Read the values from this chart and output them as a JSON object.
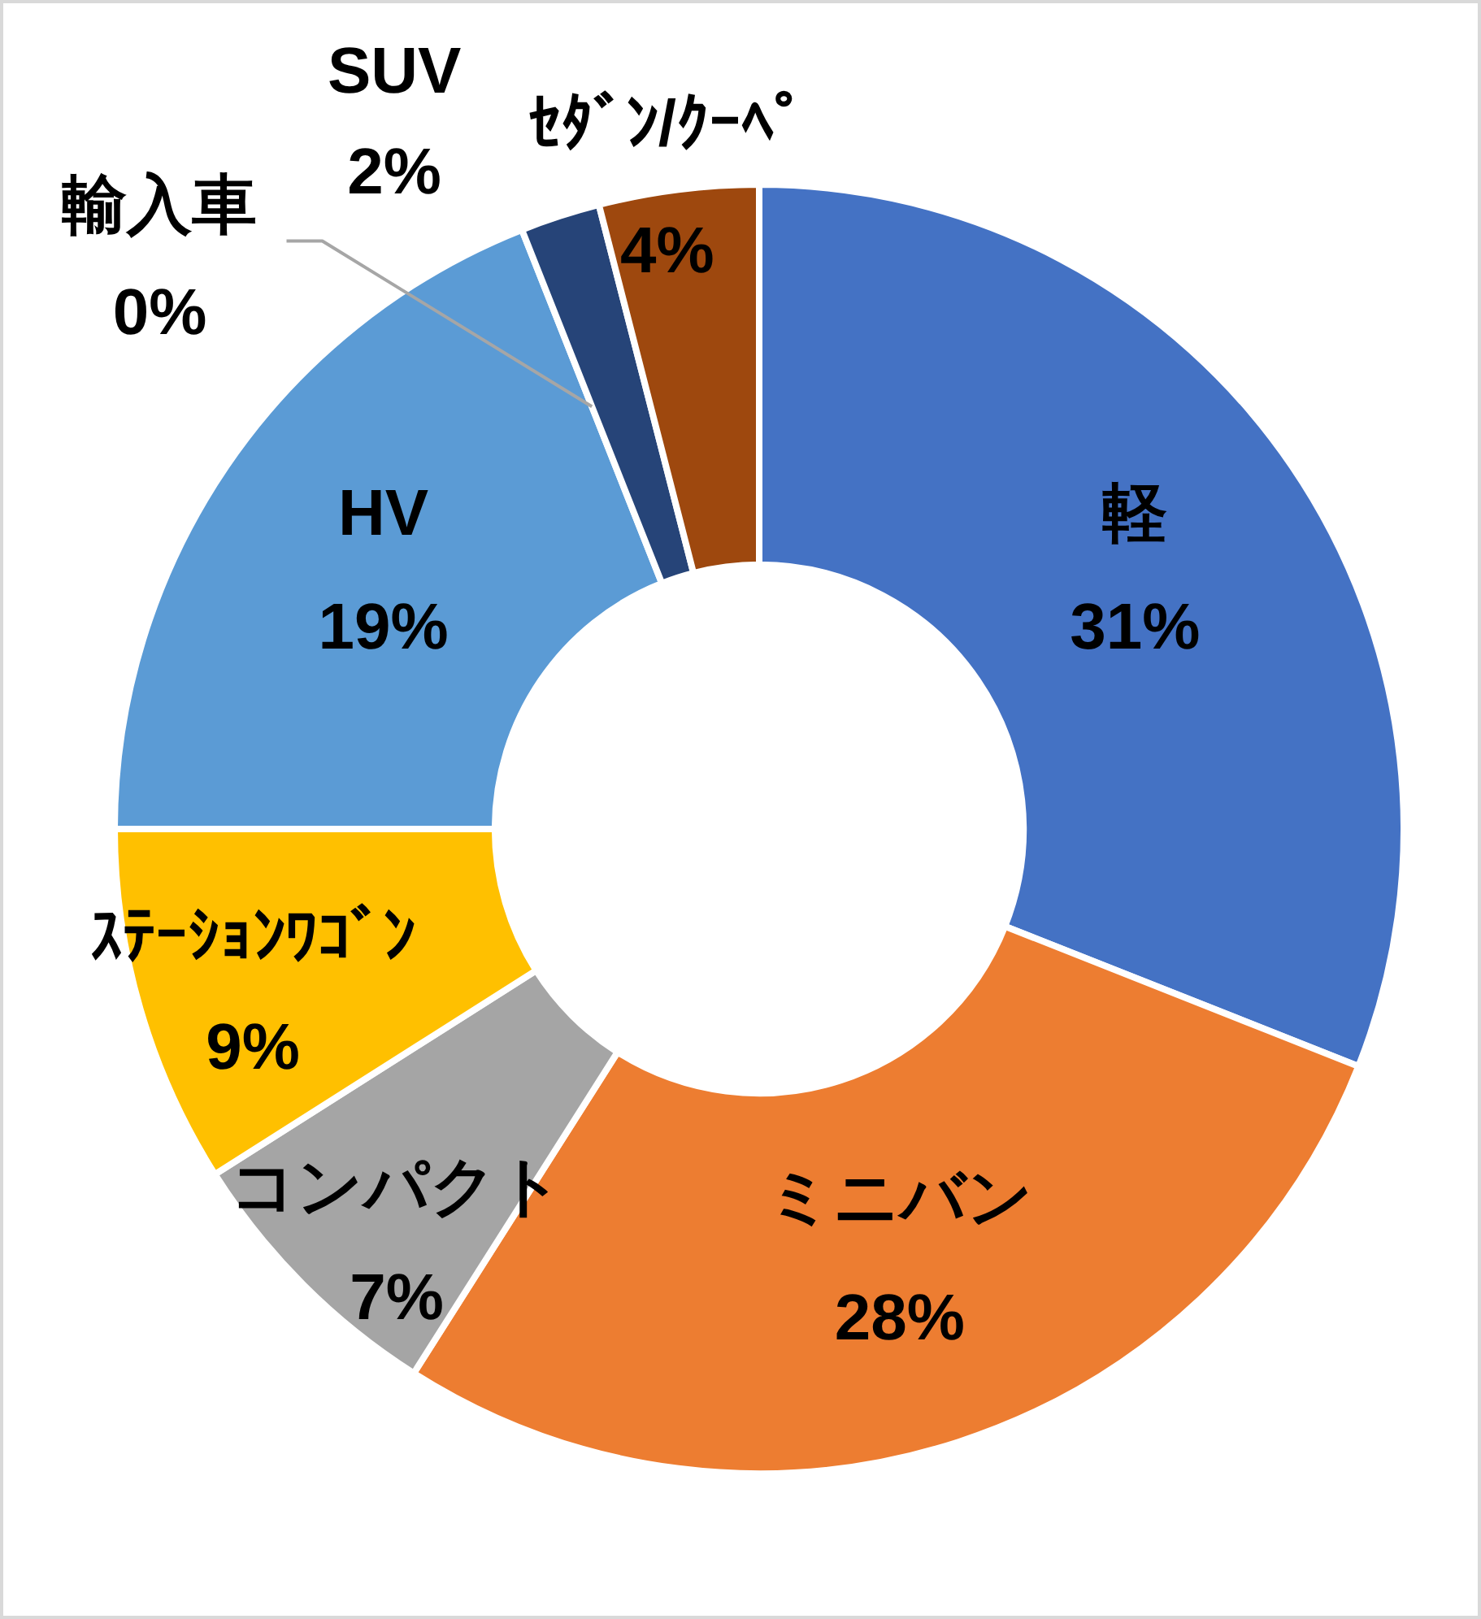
{
  "chart_data": {
    "type": "donut",
    "categories": [
      "軽",
      "ミニバン",
      "コンパクト",
      "ｽﾃｰｼｮﾝﾜｺﾞﾝ",
      "HV",
      "輸入車",
      "SUV",
      "ｾﾀﾞﾝ/ｸｰﾍﾟ"
    ],
    "values": [
      31,
      28,
      7,
      9,
      19,
      0,
      2,
      4
    ],
    "colors": [
      "#4472c4",
      "#ed7d31",
      "#a5a5a5",
      "#ffc000",
      "#5b9bd5",
      "#70ad47",
      "#264478",
      "#9e480e"
    ],
    "value_labels": [
      "31%",
      "28%",
      "7%",
      "9%",
      "19%",
      "0%",
      "2%",
      "4%"
    ]
  }
}
